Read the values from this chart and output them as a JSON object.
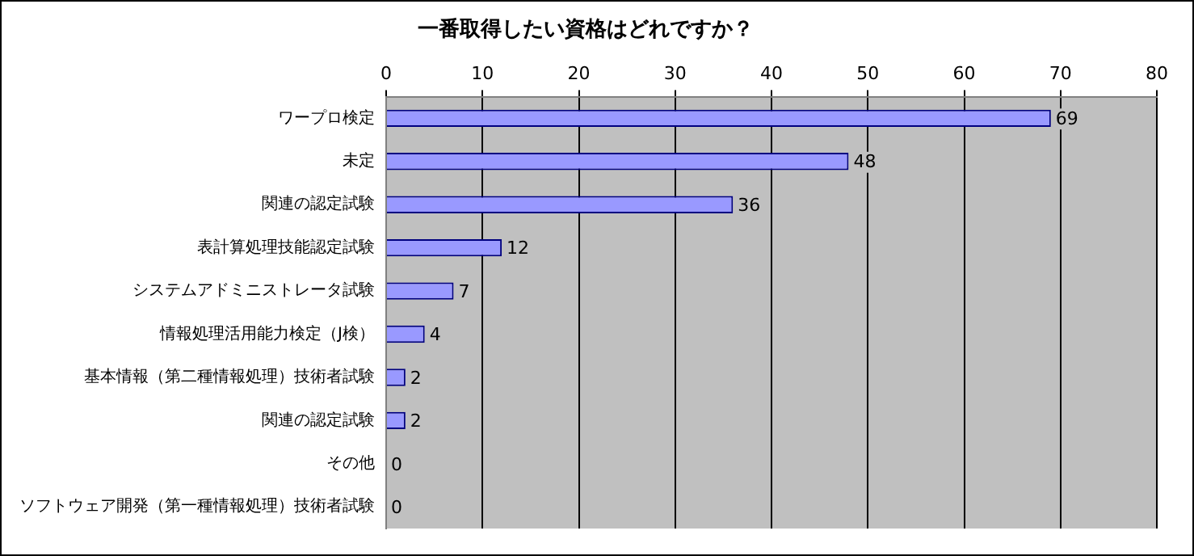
{
  "chart_data": {
    "type": "bar",
    "orientation": "horizontal",
    "title": "一番取得したい資格はどれですか？",
    "categories": [
      "ワープロ検定",
      "未定",
      "関連の認定試験",
      "表計算処理技能認定試験",
      "システムアドミニストレータ試験",
      "情報処理活用能力検定（J検）",
      "基本情報（第二種情報処理）技術者試験",
      "関連の認定試験",
      "その他",
      "ソフトウェア開発（第一種情報処理）技術者試験"
    ],
    "values": [
      69,
      48,
      36,
      12,
      7,
      4,
      2,
      2,
      0,
      0
    ],
    "color": "#9999ff",
    "xlim": [
      0,
      80
    ],
    "xticks": [
      0,
      10,
      20,
      30,
      40,
      50,
      60,
      70,
      80
    ],
    "grid": "x",
    "legend": false,
    "data_labels": true
  }
}
